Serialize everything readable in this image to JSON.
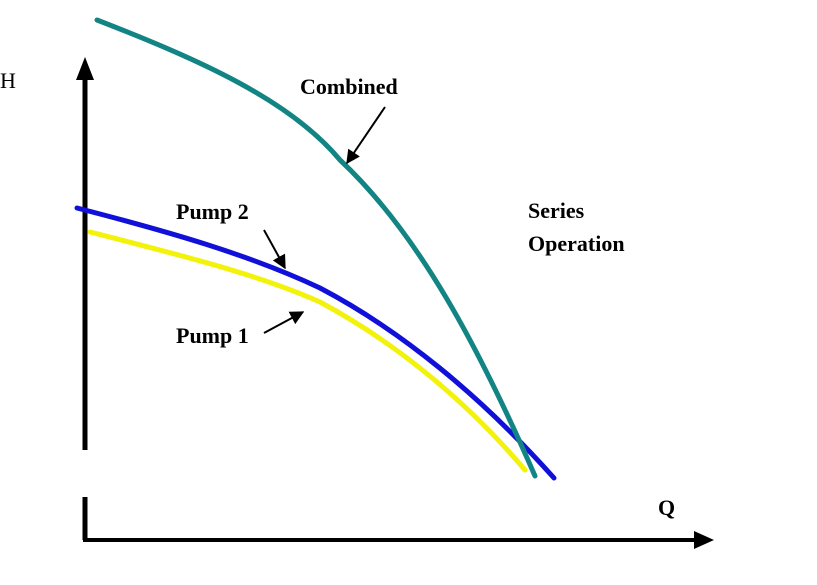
{
  "axes": {
    "y_label": "H",
    "x_label": "Q"
  },
  "curves": [
    {
      "id": "combined",
      "label": "Combined",
      "color": "#138484"
    },
    {
      "id": "pump2",
      "label": "Pump 2",
      "color": "#1010d8"
    },
    {
      "id": "pump1",
      "label": "Pump 1",
      "color": "#f2f20a"
    }
  ],
  "annotation": {
    "line1": "Series",
    "line2": "Operation"
  },
  "colors": {
    "axis": "#000000",
    "arrow": "#000000",
    "text": "#000000"
  }
}
